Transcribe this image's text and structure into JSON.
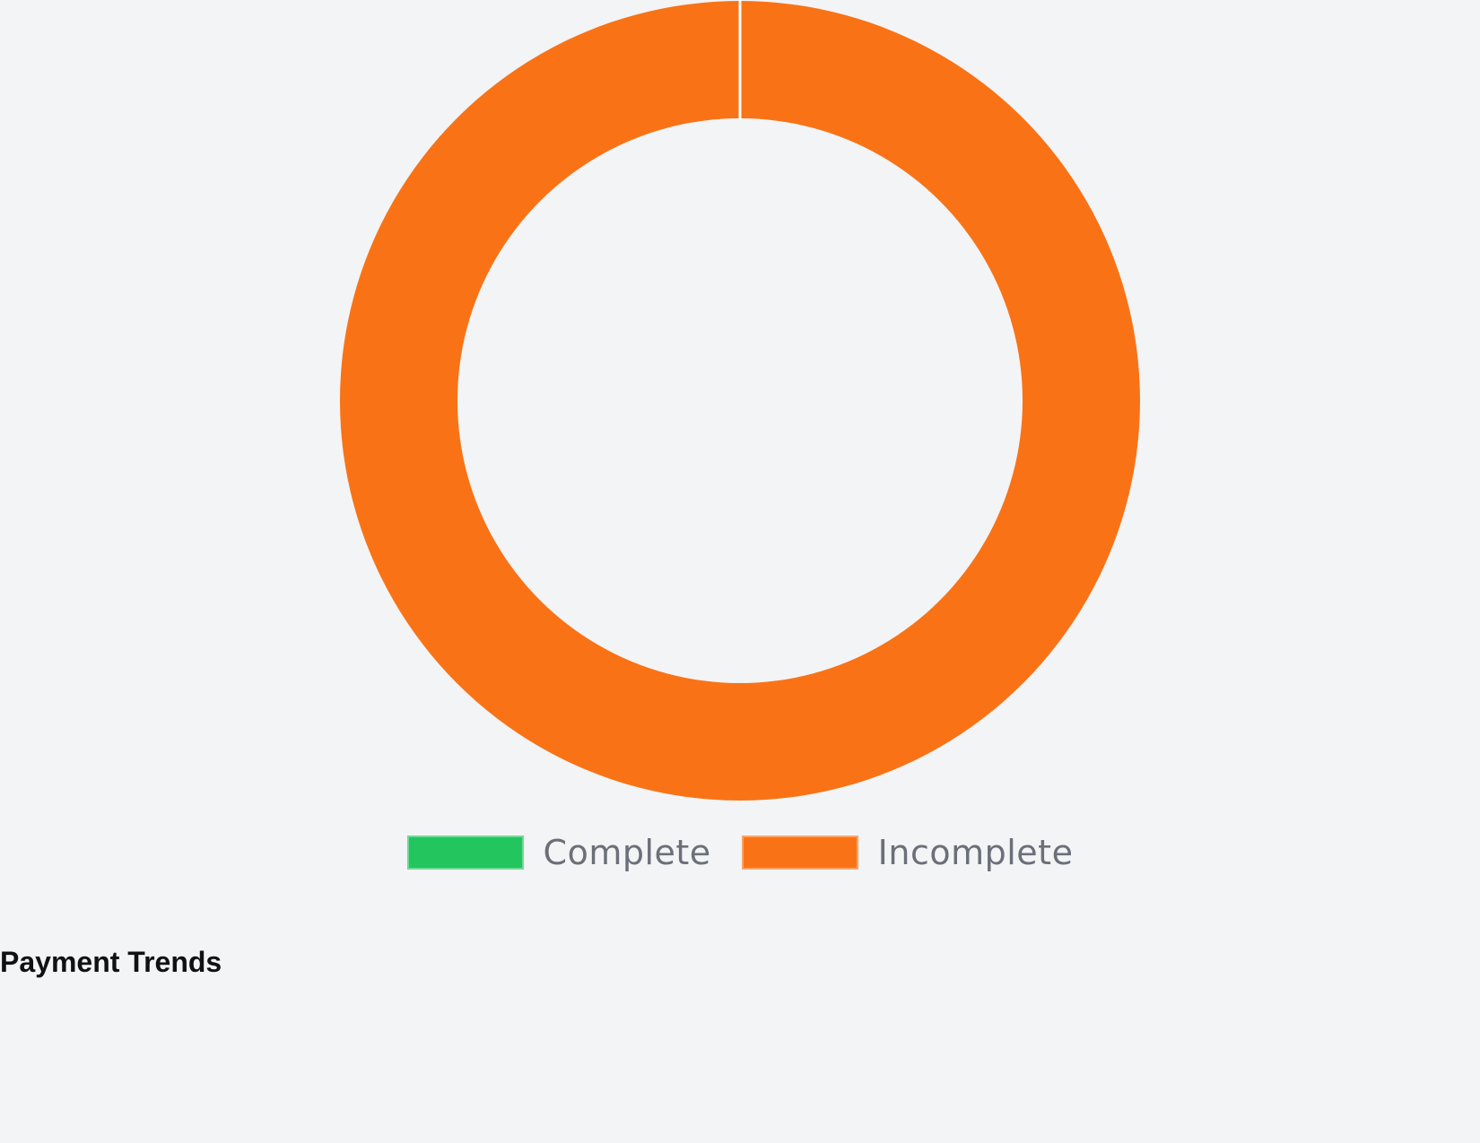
{
  "chart_data": {
    "type": "pie",
    "variant": "doughnut",
    "categories": [
      "Complete",
      "Incomplete"
    ],
    "values": [
      0,
      1
    ],
    "colors": [
      "#22c55e",
      "#f97316"
    ],
    "legend": {
      "position": "bottom",
      "entries": [
        "Complete",
        "Incomplete"
      ]
    }
  },
  "section": {
    "title": "Payment Trends"
  }
}
